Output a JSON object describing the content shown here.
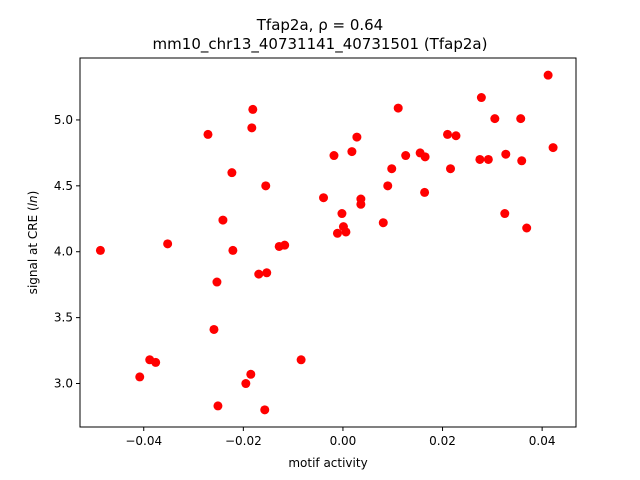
{
  "chart_data": {
    "type": "scatter",
    "title_line1_main": "Tfap2a, ",
    "title_line1_rho": "ρ = 0.64",
    "title_line2": "mm10_chr13_40731141_40731501 (Tfap2a)",
    "xlabel": "motif activity",
    "ylabel_prefix": "signal at CRE (",
    "ylabel_ln": "ln",
    "ylabel_suffix": ")",
    "xlim": [
      -0.0528,
      0.0468
    ],
    "ylim": [
      2.67,
      5.47
    ],
    "xticks": [
      -0.04,
      -0.02,
      0.0,
      0.02,
      0.04
    ],
    "xtick_labels": [
      "−0.04",
      "−0.02",
      "0.00",
      "0.02",
      "0.04"
    ],
    "yticks": [
      3.0,
      3.5,
      4.0,
      4.5,
      5.0
    ],
    "ytick_labels": [
      "3.0",
      "3.5",
      "4.0",
      "4.5",
      "5.0"
    ],
    "marker_color": "#ff0000",
    "grid": false,
    "points": [
      {
        "x": -0.0487,
        "y": 4.01
      },
      {
        "x": -0.0408,
        "y": 3.05
      },
      {
        "x": -0.0388,
        "y": 3.18
      },
      {
        "x": -0.0376,
        "y": 3.16
      },
      {
        "x": -0.0352,
        "y": 4.06
      },
      {
        "x": -0.0271,
        "y": 4.89
      },
      {
        "x": -0.0259,
        "y": 3.41
      },
      {
        "x": -0.0253,
        "y": 3.77
      },
      {
        "x": -0.0251,
        "y": 2.83
      },
      {
        "x": -0.0241,
        "y": 4.24
      },
      {
        "x": -0.0223,
        "y": 4.6
      },
      {
        "x": -0.0221,
        "y": 4.01
      },
      {
        "x": -0.0195,
        "y": 3.0
      },
      {
        "x": -0.0185,
        "y": 3.07
      },
      {
        "x": -0.0183,
        "y": 4.94
      },
      {
        "x": -0.0181,
        "y": 5.08
      },
      {
        "x": -0.0169,
        "y": 3.83
      },
      {
        "x": -0.0157,
        "y": 2.8
      },
      {
        "x": -0.0155,
        "y": 4.5
      },
      {
        "x": -0.0153,
        "y": 3.84
      },
      {
        "x": -0.0128,
        "y": 4.04
      },
      {
        "x": -0.0117,
        "y": 4.05
      },
      {
        "x": -0.0084,
        "y": 3.18
      },
      {
        "x": -0.0039,
        "y": 4.41
      },
      {
        "x": -0.0018,
        "y": 4.73
      },
      {
        "x": -0.0011,
        "y": 4.14
      },
      {
        "x": -0.0002,
        "y": 4.29
      },
      {
        "x": 0.0001,
        "y": 4.19
      },
      {
        "x": 0.0006,
        "y": 4.15
      },
      {
        "x": 0.0018,
        "y": 4.76
      },
      {
        "x": 0.0028,
        "y": 4.87
      },
      {
        "x": 0.0036,
        "y": 4.4
      },
      {
        "x": 0.0036,
        "y": 4.36
      },
      {
        "x": 0.0081,
        "y": 4.22
      },
      {
        "x": 0.009,
        "y": 4.5
      },
      {
        "x": 0.0098,
        "y": 4.63
      },
      {
        "x": 0.0111,
        "y": 5.09
      },
      {
        "x": 0.0126,
        "y": 4.73
      },
      {
        "x": 0.0155,
        "y": 4.75
      },
      {
        "x": 0.0164,
        "y": 4.45
      },
      {
        "x": 0.0165,
        "y": 4.72
      },
      {
        "x": 0.021,
        "y": 4.89
      },
      {
        "x": 0.0216,
        "y": 4.63
      },
      {
        "x": 0.0227,
        "y": 4.88
      },
      {
        "x": 0.0275,
        "y": 4.7
      },
      {
        "x": 0.0278,
        "y": 5.17
      },
      {
        "x": 0.0292,
        "y": 4.7
      },
      {
        "x": 0.0305,
        "y": 5.01
      },
      {
        "x": 0.0325,
        "y": 4.29
      },
      {
        "x": 0.0327,
        "y": 4.74
      },
      {
        "x": 0.0357,
        "y": 5.01
      },
      {
        "x": 0.0359,
        "y": 4.69
      },
      {
        "x": 0.0369,
        "y": 4.18
      },
      {
        "x": 0.0412,
        "y": 5.34
      },
      {
        "x": 0.0422,
        "y": 4.79
      }
    ]
  }
}
